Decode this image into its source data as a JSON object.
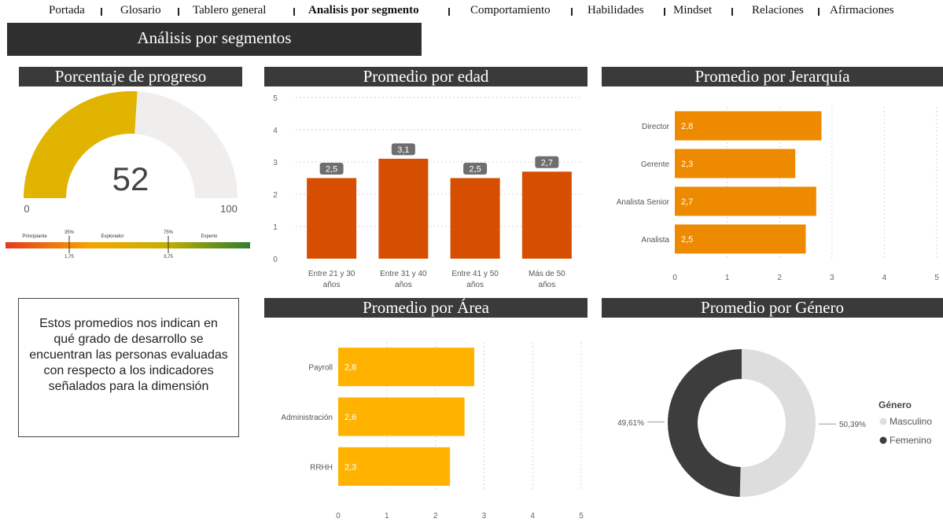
{
  "nav": {
    "items": [
      {
        "label": "Portada",
        "active": false
      },
      {
        "label": "Glosario",
        "active": false
      },
      {
        "label": "Tablero general",
        "active": false
      },
      {
        "label": "Analisis por segmento",
        "active": true
      },
      {
        "label": "Comportamiento",
        "active": false
      },
      {
        "label": "Habilidades",
        "active": false
      },
      {
        "label": "Mindset",
        "active": false
      },
      {
        "label": "Relaciones",
        "active": false
      },
      {
        "label": "Afirmaciones",
        "active": false
      }
    ]
  },
  "page": {
    "title": "Análisis por segmentos"
  },
  "progress": {
    "title": "Porcentaje de progreso",
    "value": 52,
    "value_label": "52",
    "min_label": "0",
    "max_label": "100",
    "scale": {
      "levels": [
        "Principiante",
        "Explorador",
        "Experto"
      ],
      "pct_marks": [
        "35%",
        "75%"
      ],
      "value_marks": [
        "1,75",
        "3,75"
      ]
    },
    "colors": {
      "fill": "#E0B400",
      "track": "#EFEEED"
    }
  },
  "description": "Estos promedios nos indican en qué grado de desarrollo se encuentran las personas evaluadas con respecto a los indicadores señalados para la dimensión",
  "chart_data": [
    {
      "id": "edad",
      "type": "bar",
      "title": "Promedio por edad",
      "categories": [
        "Entre 21 y 30 años",
        "Entre 31 y 40 años",
        "Entre 41 y 50 años",
        "Más de 50 años"
      ],
      "values": [
        2.5,
        3.1,
        2.5,
        2.7
      ],
      "data_labels": [
        "2,5",
        "3,1",
        "2,5",
        "2,7"
      ],
      "ylim": [
        0,
        5
      ],
      "yticks": [
        "0",
        "1",
        "2",
        "3",
        "4",
        "5"
      ],
      "color": "#D64F00",
      "grid": true
    },
    {
      "id": "jerarquia",
      "type": "bar",
      "orientation": "horizontal",
      "title": "Promedio por Jerarquía",
      "categories": [
        "Director",
        "Gerente",
        "Analista Senior",
        "Analista"
      ],
      "values": [
        2.8,
        2.3,
        2.7,
        2.5
      ],
      "data_labels": [
        "2,8",
        "2,3",
        "2,7",
        "2,5"
      ],
      "xlim": [
        0,
        5
      ],
      "xticks": [
        "0",
        "1",
        "2",
        "3",
        "4",
        "5"
      ],
      "color": "#EE8A00",
      "grid": true
    },
    {
      "id": "area",
      "type": "bar",
      "orientation": "horizontal",
      "title": "Promedio por Área",
      "categories": [
        "Payroll",
        "Administración",
        "RRHH"
      ],
      "values": [
        2.8,
        2.6,
        2.3
      ],
      "data_labels": [
        "2,8",
        "2,6",
        "2,3"
      ],
      "xlim": [
        0,
        5
      ],
      "xticks": [
        "0",
        "1",
        "2",
        "3",
        "4",
        "5"
      ],
      "color": "#FFB300",
      "grid": true
    },
    {
      "id": "genero",
      "type": "pie",
      "title": "Promedio por Género",
      "categories": [
        "Masculino",
        "Femenino"
      ],
      "values": [
        50.39,
        49.61
      ],
      "data_labels": [
        "50,39%",
        "49,61%"
      ],
      "legend_title": "Género",
      "legend_position": "right",
      "colors": [
        "#DDDDDD",
        "#3D3D3D"
      ]
    }
  ]
}
